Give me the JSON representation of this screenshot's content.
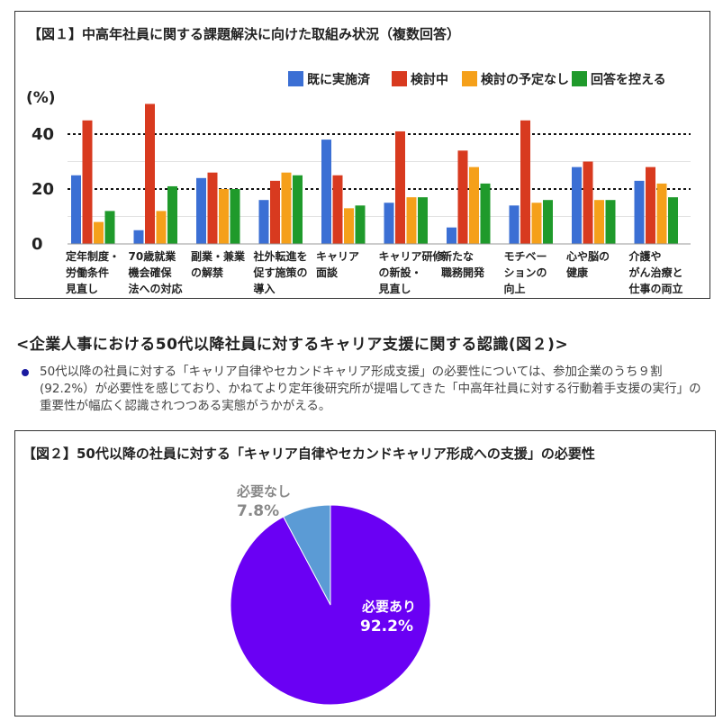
{
  "chart_data": [
    {
      "type": "bar",
      "title": "【図１】中高年社員に関する課題解決に向けた取組み状況（複数回答）",
      "ylabel": "(%)",
      "yticks": [
        "40",
        "20",
        "0"
      ],
      "ylim": [
        0,
        50
      ],
      "reference_lines": [
        40,
        20
      ],
      "legend_position": "top-right",
      "categories": [
        [
          "定年制度・",
          "労働条件",
          "見直し"
        ],
        [
          "70歳就業",
          "機会確保",
          "法への対応"
        ],
        [
          "副業・兼業",
          "の解禁"
        ],
        [
          "社外転進を",
          "促す施策の",
          "導入"
        ],
        [
          "キャリア",
          "面談"
        ],
        [
          "キャリア研修",
          "の新設・",
          "見直し"
        ],
        [
          "新たな",
          "職務開発"
        ],
        [
          "モチベー",
          "ションの",
          "向上"
        ],
        [
          "心や脳の",
          "健康"
        ],
        [
          "介護や",
          "がん治療と",
          "仕事の両立"
        ]
      ],
      "series": [
        {
          "name": "既に実施済",
          "color": "#3b6fd4",
          "values": [
            25,
            5,
            24,
            16,
            38,
            15,
            6,
            14,
            28,
            23
          ]
        },
        {
          "name": "検討中",
          "color": "#d83a1f",
          "values": [
            45,
            51,
            26,
            23,
            25,
            41,
            34,
            45,
            30,
            28
          ]
        },
        {
          "name": "検討の予定なし",
          "color": "#f5a01a",
          "values": [
            8,
            12,
            20,
            26,
            13,
            17,
            28,
            15,
            16,
            22
          ]
        },
        {
          "name": "回答を控える",
          "color": "#1f9a2b",
          "values": [
            12,
            21,
            20,
            25,
            14,
            17,
            22,
            16,
            16,
            17
          ]
        }
      ]
    },
    {
      "type": "pie",
      "title": "【図２】50代以降の社員に対する「キャリア自律やセカンドキャリア形成への支援」の必要性",
      "slices": [
        {
          "label": "必要あり",
          "value": 92.2,
          "value_label": "92.2%",
          "color": "#6a00f4",
          "label_color": "#ffffff"
        },
        {
          "label": "必要なし",
          "value": 7.8,
          "value_label": "7.8%",
          "color": "#5b9bd5",
          "label_color": "#888888"
        }
      ]
    }
  ],
  "section": {
    "heading": "<企業人事における50代以降社員に対するキャリア支援に関する認識(図２)>",
    "bullet": "50代以降の社員に対する「キャリア自律やセカンドキャリア形成支援」の必要性については、参加企業のうち９割(92.2%）が必要性を感じており、かねてより定年後研究所が提唱してきた「中高年社員に対する行動着手支援の実行」の重要性が幅広く認識されつつある実態がうかがえる。"
  }
}
